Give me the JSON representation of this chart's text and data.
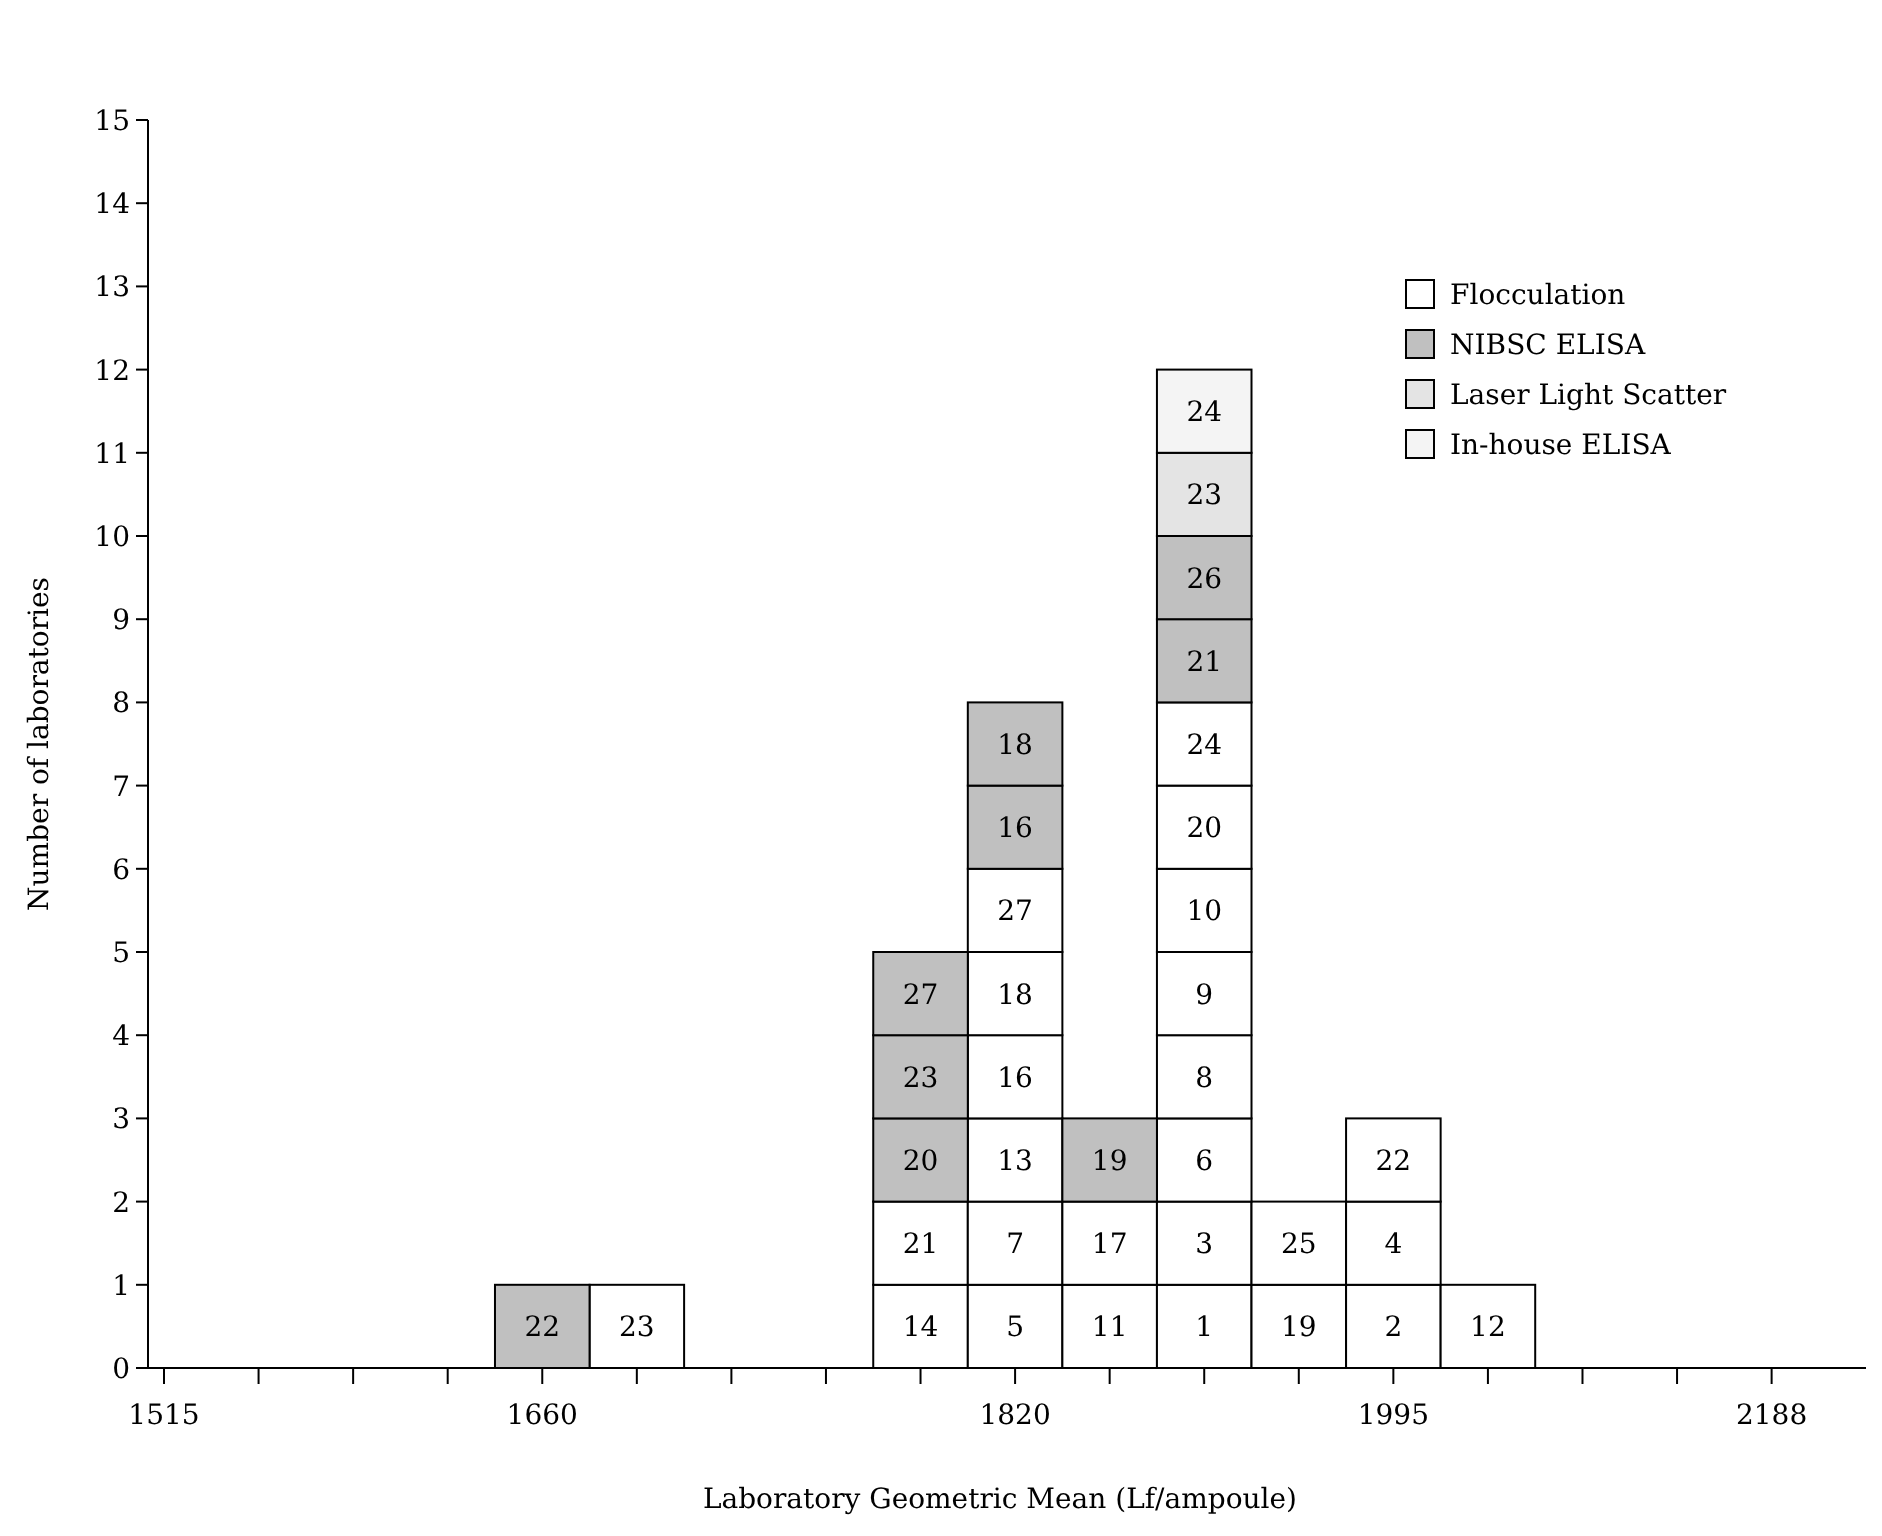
{
  "chart_data": {
    "type": "bar",
    "stacked": true,
    "xlabel": "Laboratory Geometric Mean (Lf/ampoule)",
    "ylabel": "Number of laboratories",
    "categories": [
      "1515",
      null,
      null,
      null,
      "1660",
      null,
      null,
      null,
      null,
      "1820",
      null,
      null,
      null,
      "1995",
      null,
      null,
      null,
      "2188"
    ],
    "ylim": [
      0,
      15
    ],
    "yticks": [
      0,
      1,
      2,
      3,
      4,
      5,
      6,
      7,
      8,
      9,
      10,
      11,
      12,
      13,
      14,
      15
    ],
    "legend": "top right",
    "series": [
      {
        "name": "Flocculation",
        "color": "#ffffff",
        "values": [
          null,
          null,
          null,
          null,
          null,
          1,
          null,
          null,
          1,
          1,
          1,
          1,
          1,
          1,
          1,
          null,
          null,
          null
        ]
      },
      {
        "color": "#ffffff",
        "values": [
          null,
          null,
          null,
          null,
          null,
          null,
          null,
          null,
          1,
          1,
          1,
          1,
          1,
          1,
          null,
          null,
          null,
          null
        ]
      },
      {
        "color": "#ffffff",
        "values": [
          null,
          null,
          null,
          null,
          null,
          null,
          null,
          null,
          null,
          1,
          null,
          1,
          null,
          1,
          null,
          null,
          null,
          null
        ]
      },
      {
        "color": "#ffffff",
        "values": [
          null,
          null,
          null,
          null,
          null,
          null,
          null,
          null,
          null,
          1,
          null,
          1,
          null,
          null,
          null,
          null,
          null,
          null
        ]
      },
      {
        "color": "#ffffff",
        "values": [
          null,
          null,
          null,
          null,
          null,
          null,
          null,
          null,
          null,
          1,
          null,
          1,
          null,
          null,
          null,
          null,
          null,
          null
        ]
      },
      {
        "color": "#ffffff",
        "values": [
          null,
          null,
          null,
          null,
          null,
          null,
          null,
          null,
          null,
          1,
          null,
          1,
          null,
          null,
          null,
          null,
          null,
          null
        ]
      },
      {
        "color": "#ffffff",
        "values": [
          null,
          null,
          null,
          null,
          null,
          null,
          null,
          null,
          null,
          null,
          null,
          1,
          null,
          null,
          null,
          null,
          null,
          null
        ]
      },
      {
        "color": "#ffffff",
        "values": [
          null,
          null,
          null,
          null,
          null,
          null,
          null,
          null,
          null,
          null,
          null,
          1,
          null,
          null,
          null,
          null,
          null,
          null
        ]
      },
      {
        "name": "NIBSC ELISA",
        "color": "#c0c0c0",
        "values": [
          null,
          null,
          null,
          null,
          1,
          null,
          null,
          null,
          1,
          1,
          1,
          1,
          null,
          null,
          null,
          null,
          null,
          null
        ]
      },
      {
        "color": "#c0c0c0",
        "values": [
          null,
          null,
          null,
          null,
          null,
          null,
          null,
          null,
          1,
          1,
          null,
          1,
          null,
          null,
          null,
          null,
          null,
          null
        ]
      },
      {
        "color": "#c0c0c0",
        "values": [
          null,
          null,
          null,
          null,
          null,
          null,
          null,
          null,
          1,
          null,
          null,
          null,
          null,
          null,
          null,
          null,
          null,
          null
        ]
      },
      {
        "name": "Laser Light Scatter",
        "color": "#e4e4e4",
        "values": [
          null,
          null,
          null,
          null,
          null,
          null,
          null,
          null,
          null,
          null,
          null,
          1,
          null,
          null,
          null,
          null,
          null,
          null
        ]
      },
      {
        "name": "In-house ELISA",
        "color": "#f4f4f4",
        "values": [
          null,
          null,
          null,
          null,
          null,
          null,
          null,
          null,
          null,
          null,
          null,
          1,
          null,
          null,
          null,
          null,
          null,
          null
        ]
      }
    ],
    "annotations": [
      "23",
      "14",
      "5",
      "11",
      "1",
      "19",
      "2",
      "12",
      "21",
      "7",
      "17",
      "3",
      "25",
      "4",
      "13",
      "6",
      "22",
      "16",
      "8",
      "18",
      "9",
      "27",
      "10",
      "20",
      "24",
      "22",
      "20",
      "16",
      "19",
      "21",
      "23",
      "18",
      "26",
      "27",
      "23",
      "24"
    ]
  }
}
